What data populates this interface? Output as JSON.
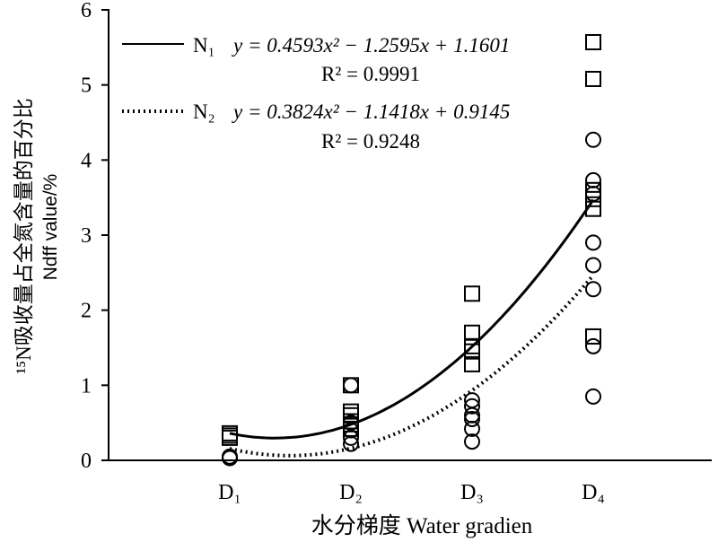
{
  "chart_data": {
    "type": "scatter",
    "xlabel": "水分梯度 Water gradien",
    "ylabel_cn": "¹⁵N吸收量占全氮含量的百分比",
    "ylabel_en": "Ndff value/%",
    "categories": [
      "D₁",
      "D₂",
      "D₃",
      "D₄"
    ],
    "ylim": [
      0,
      6
    ],
    "yticks": [
      "0",
      "1",
      "2",
      "3",
      "4",
      "5",
      "6"
    ],
    "grid": false,
    "legend_position": "top-left",
    "series": [
      {
        "name": "N₁",
        "marker": "square",
        "line_style": "solid",
        "equation": "y = 0.4593x² − 1.2595x + 1.1601",
        "r2": "R² = 0.9991",
        "fit": [
          0.4593,
          -1.2595,
          1.1601
        ],
        "points": [
          {
            "x": 1,
            "y": 0.36
          },
          {
            "x": 1,
            "y": 0.33
          },
          {
            "x": 1,
            "y": 0.3
          },
          {
            "x": 2,
            "y": 1.0
          },
          {
            "x": 2,
            "y": 0.65
          },
          {
            "x": 2,
            "y": 0.6
          },
          {
            "x": 2,
            "y": 0.52
          },
          {
            "x": 2,
            "y": 0.48
          },
          {
            "x": 2,
            "y": 0.42
          },
          {
            "x": 3,
            "y": 2.22
          },
          {
            "x": 3,
            "y": 1.7
          },
          {
            "x": 3,
            "y": 1.52
          },
          {
            "x": 3,
            "y": 1.45
          },
          {
            "x": 3,
            "y": 1.28
          },
          {
            "x": 4,
            "y": 5.57
          },
          {
            "x": 4,
            "y": 5.08
          },
          {
            "x": 4,
            "y": 3.6
          },
          {
            "x": 4,
            "y": 3.48
          },
          {
            "x": 4,
            "y": 3.35
          },
          {
            "x": 4,
            "y": 1.65
          }
        ]
      },
      {
        "name": "N₂",
        "marker": "circle",
        "line_style": "dotted",
        "equation": "y = 0.3824x² − 1.1418x + 0.9145",
        "r2": "R² = 0.9248",
        "fit": [
          0.3824,
          -1.1418,
          0.9145
        ],
        "points": [
          {
            "x": 1,
            "y": 0.05
          },
          {
            "x": 1,
            "y": 0.03
          },
          {
            "x": 2,
            "y": 1.0
          },
          {
            "x": 2,
            "y": 0.5
          },
          {
            "x": 2,
            "y": 0.4
          },
          {
            "x": 2,
            "y": 0.3
          },
          {
            "x": 2,
            "y": 0.22
          },
          {
            "x": 3,
            "y": 0.8
          },
          {
            "x": 3,
            "y": 0.72
          },
          {
            "x": 3,
            "y": 0.6
          },
          {
            "x": 3,
            "y": 0.55
          },
          {
            "x": 3,
            "y": 0.42
          },
          {
            "x": 3,
            "y": 0.25
          },
          {
            "x": 4,
            "y": 4.27
          },
          {
            "x": 4,
            "y": 3.73
          },
          {
            "x": 4,
            "y": 3.55
          },
          {
            "x": 4,
            "y": 2.9
          },
          {
            "x": 4,
            "y": 2.6
          },
          {
            "x": 4,
            "y": 2.28
          },
          {
            "x": 4,
            "y": 1.52
          },
          {
            "x": 4,
            "y": 0.85
          }
        ]
      }
    ]
  }
}
